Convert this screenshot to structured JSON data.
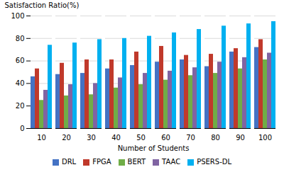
{
  "chart_data": {
    "type": "bar",
    "categories": [
      10,
      20,
      30,
      40,
      50,
      60,
      70,
      80,
      90,
      100
    ],
    "series": [
      {
        "name": "DRL",
        "color": "#4472C4",
        "values": [
          46,
          48,
          49,
          53,
          56,
          59,
          61,
          55,
          68,
          72
        ]
      },
      {
        "name": "FPGA",
        "color": "#C0392B",
        "values": [
          53,
          58,
          61,
          61,
          68,
          73,
          65,
          66,
          71,
          79
        ]
      },
      {
        "name": "BERT",
        "color": "#70AD47",
        "values": [
          25,
          29,
          30,
          36,
          39,
          43,
          47,
          49,
          53,
          61
        ]
      },
      {
        "name": "TAAC",
        "color": "#8064A2",
        "values": [
          34,
          39,
          40,
          45,
          49,
          51,
          54,
          59,
          63,
          67
        ]
      },
      {
        "name": "PSERS-DL",
        "color": "#00B0F0",
        "values": [
          74,
          76,
          79,
          80,
          82,
          85,
          88,
          91,
          93,
          95
        ]
      }
    ],
    "xlabel": "Number of Students",
    "ylabel": "Satisfaction Ratio(%)",
    "ylim": [
      0,
      100
    ],
    "yticks": [
      0,
      20,
      40,
      60,
      80,
      100
    ],
    "grid": true,
    "legend": "bottom"
  }
}
